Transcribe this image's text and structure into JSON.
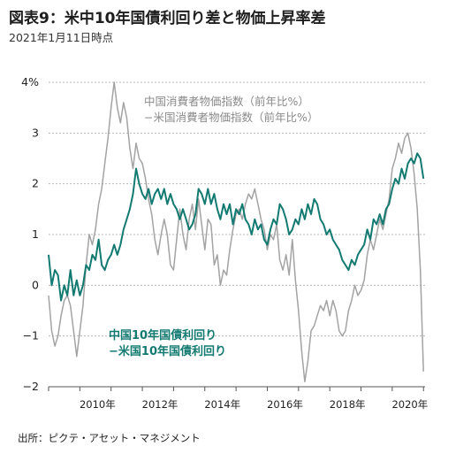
{
  "header": {
    "title": "図表9：米中10年国債利回り差と物価上昇率差",
    "subtitle": "2021年1月11日時点"
  },
  "footer": {
    "source": "出所：ピクテ・アセット・マネジメント"
  },
  "colors": {
    "cpi_series": "#a3a3a3",
    "yield_series": "#137a72",
    "grid": "#b8b8b8",
    "axis": "#555555"
  },
  "chart_data": {
    "type": "line",
    "x_unit": "year",
    "xlim": [
      2009.0,
      2021.05
    ],
    "ylim": [
      -2,
      4
    ],
    "yticks": [
      {
        "value": 4,
        "label": "4%"
      },
      {
        "value": 3,
        "label": "3"
      },
      {
        "value": 2,
        "label": "2"
      },
      {
        "value": 1,
        "label": "1"
      },
      {
        "value": 0,
        "label": "0"
      },
      {
        "value": -1,
        "label": "−1"
      },
      {
        "value": -2,
        "label": "−2"
      }
    ],
    "xticks": [
      {
        "value": 2010,
        "label": "2010年"
      },
      {
        "value": 2012,
        "label": "2012年"
      },
      {
        "value": 2014,
        "label": "2014年"
      },
      {
        "value": 2016,
        "label": "2016年"
      },
      {
        "value": 2018,
        "label": "2018年"
      },
      {
        "value": 2020,
        "label": "2020年"
      }
    ],
    "grid": "horizontal dashed",
    "series": [
      {
        "name_lines": [
          "中国消費者物価指数（前年比%）",
          "−米国消費者物価指数（前年比%）"
        ],
        "color": "#a3a3a3",
        "points": [
          [
            2009.0,
            -0.2
          ],
          [
            2009.1,
            -0.9
          ],
          [
            2009.2,
            -1.2
          ],
          [
            2009.3,
            -1.0
          ],
          [
            2009.4,
            -0.6
          ],
          [
            2009.5,
            -0.3
          ],
          [
            2009.6,
            -0.2
          ],
          [
            2009.7,
            -0.4
          ],
          [
            2009.8,
            -0.9
          ],
          [
            2009.9,
            -1.4
          ],
          [
            2010.0,
            -0.9
          ],
          [
            2010.1,
            -0.4
          ],
          [
            2010.2,
            0.4
          ],
          [
            2010.3,
            1.0
          ],
          [
            2010.4,
            0.8
          ],
          [
            2010.5,
            1.1
          ],
          [
            2010.6,
            1.6
          ],
          [
            2010.7,
            1.9
          ],
          [
            2010.8,
            2.4
          ],
          [
            2010.9,
            2.9
          ],
          [
            2011.0,
            3.5
          ],
          [
            2011.1,
            4.0
          ],
          [
            2011.2,
            3.5
          ],
          [
            2011.3,
            3.2
          ],
          [
            2011.4,
            3.6
          ],
          [
            2011.5,
            3.3
          ],
          [
            2011.6,
            2.7
          ],
          [
            2011.7,
            2.3
          ],
          [
            2011.8,
            2.8
          ],
          [
            2011.9,
            2.5
          ],
          [
            2012.0,
            2.4
          ],
          [
            2012.1,
            2.1
          ],
          [
            2012.2,
            1.7
          ],
          [
            2012.3,
            1.4
          ],
          [
            2012.4,
            0.9
          ],
          [
            2012.5,
            0.6
          ],
          [
            2012.6,
            1.0
          ],
          [
            2012.7,
            1.3
          ],
          [
            2012.8,
            1.0
          ],
          [
            2012.9,
            0.4
          ],
          [
            2013.0,
            0.3
          ],
          [
            2013.1,
            0.9
          ],
          [
            2013.2,
            1.5
          ],
          [
            2013.3,
            1.0
          ],
          [
            2013.4,
            0.7
          ],
          [
            2013.5,
            1.3
          ],
          [
            2013.6,
            1.6
          ],
          [
            2013.7,
            1.1
          ],
          [
            2013.8,
            1.7
          ],
          [
            2013.9,
            1.2
          ],
          [
            2014.0,
            0.7
          ],
          [
            2014.1,
            1.3
          ],
          [
            2014.2,
            1.2
          ],
          [
            2014.3,
            0.4
          ],
          [
            2014.4,
            0.6
          ],
          [
            2014.5,
            0.0
          ],
          [
            2014.6,
            0.3
          ],
          [
            2014.7,
            0.2
          ],
          [
            2014.8,
            0.7
          ],
          [
            2014.9,
            1.1
          ],
          [
            2015.0,
            1.4
          ],
          [
            2015.1,
            1.5
          ],
          [
            2015.2,
            1.3
          ],
          [
            2015.3,
            1.6
          ],
          [
            2015.4,
            1.8
          ],
          [
            2015.5,
            1.7
          ],
          [
            2015.6,
            1.9
          ],
          [
            2015.7,
            1.6
          ],
          [
            2015.8,
            1.3
          ],
          [
            2015.9,
            1.1
          ],
          [
            2016.0,
            0.7
          ],
          [
            2016.1,
            1.0
          ],
          [
            2016.2,
            0.9
          ],
          [
            2016.3,
            1.2
          ],
          [
            2016.4,
            0.5
          ],
          [
            2016.5,
            0.3
          ],
          [
            2016.6,
            0.6
          ],
          [
            2016.7,
            0.2
          ],
          [
            2016.8,
            0.9
          ],
          [
            2016.9,
            0.1
          ],
          [
            2017.0,
            -0.5
          ],
          [
            2017.1,
            -1.3
          ],
          [
            2017.2,
            -1.9
          ],
          [
            2017.3,
            -1.5
          ],
          [
            2017.4,
            -0.9
          ],
          [
            2017.5,
            -0.8
          ],
          [
            2017.6,
            -0.6
          ],
          [
            2017.7,
            -0.4
          ],
          [
            2017.8,
            -0.5
          ],
          [
            2017.9,
            -0.3
          ],
          [
            2018.0,
            -0.6
          ],
          [
            2018.1,
            -0.3
          ],
          [
            2018.2,
            -0.5
          ],
          [
            2018.3,
            -0.9
          ],
          [
            2018.4,
            -1.0
          ],
          [
            2018.5,
            -0.9
          ],
          [
            2018.6,
            -0.5
          ],
          [
            2018.7,
            -0.3
          ],
          [
            2018.8,
            0.0
          ],
          [
            2018.9,
            -0.2
          ],
          [
            2019.0,
            -0.1
          ],
          [
            2019.1,
            0.1
          ],
          [
            2019.2,
            0.6
          ],
          [
            2019.3,
            0.9
          ],
          [
            2019.4,
            0.7
          ],
          [
            2019.5,
            1.0
          ],
          [
            2019.6,
            1.3
          ],
          [
            2019.7,
            1.1
          ],
          [
            2019.8,
            1.4
          ],
          [
            2019.9,
            1.7
          ],
          [
            2020.0,
            2.3
          ],
          [
            2020.1,
            2.5
          ],
          [
            2020.2,
            2.8
          ],
          [
            2020.3,
            2.6
          ],
          [
            2020.4,
            2.9
          ],
          [
            2020.5,
            3.0
          ],
          [
            2020.6,
            2.7
          ],
          [
            2020.7,
            2.2
          ],
          [
            2020.8,
            1.5
          ],
          [
            2020.9,
            0.3
          ],
          [
            2021.0,
            -1.7
          ]
        ]
      },
      {
        "name_lines": [
          "中国10年国債利回り",
          "−米国10年国債利回り"
        ],
        "color": "#137a72",
        "points": [
          [
            2009.0,
            0.6
          ],
          [
            2009.1,
            0.0
          ],
          [
            2009.2,
            0.3
          ],
          [
            2009.3,
            0.2
          ],
          [
            2009.4,
            -0.3
          ],
          [
            2009.5,
            0.0
          ],
          [
            2009.6,
            -0.2
          ],
          [
            2009.7,
            0.3
          ],
          [
            2009.8,
            -0.2
          ],
          [
            2009.9,
            0.1
          ],
          [
            2010.0,
            -0.2
          ],
          [
            2010.1,
            0.0
          ],
          [
            2010.2,
            0.4
          ],
          [
            2010.3,
            0.3
          ],
          [
            2010.4,
            0.6
          ],
          [
            2010.5,
            0.5
          ],
          [
            2010.6,
            0.9
          ],
          [
            2010.7,
            0.4
          ],
          [
            2010.8,
            0.3
          ],
          [
            2010.9,
            0.5
          ],
          [
            2011.0,
            0.6
          ],
          [
            2011.1,
            0.8
          ],
          [
            2011.2,
            0.6
          ],
          [
            2011.3,
            0.8
          ],
          [
            2011.4,
            1.1
          ],
          [
            2011.5,
            1.3
          ],
          [
            2011.6,
            1.5
          ],
          [
            2011.7,
            1.8
          ],
          [
            2011.8,
            2.3
          ],
          [
            2011.9,
            2.0
          ],
          [
            2012.0,
            1.8
          ],
          [
            2012.1,
            1.7
          ],
          [
            2012.2,
            1.9
          ],
          [
            2012.3,
            1.6
          ],
          [
            2012.4,
            1.8
          ],
          [
            2012.5,
            1.9
          ],
          [
            2012.6,
            1.7
          ],
          [
            2012.7,
            1.9
          ],
          [
            2012.8,
            1.6
          ],
          [
            2012.9,
            1.8
          ],
          [
            2013.0,
            1.6
          ],
          [
            2013.1,
            1.5
          ],
          [
            2013.2,
            1.3
          ],
          [
            2013.3,
            1.5
          ],
          [
            2013.4,
            1.3
          ],
          [
            2013.5,
            1.1
          ],
          [
            2013.6,
            1.2
          ],
          [
            2013.7,
            1.4
          ],
          [
            2013.8,
            1.9
          ],
          [
            2013.9,
            1.8
          ],
          [
            2014.0,
            1.6
          ],
          [
            2014.1,
            1.9
          ],
          [
            2014.2,
            1.6
          ],
          [
            2014.3,
            1.8
          ],
          [
            2014.4,
            1.5
          ],
          [
            2014.5,
            1.3
          ],
          [
            2014.6,
            1.6
          ],
          [
            2014.7,
            1.4
          ],
          [
            2014.8,
            1.6
          ],
          [
            2014.9,
            1.2
          ],
          [
            2015.0,
            1.5
          ],
          [
            2015.1,
            1.4
          ],
          [
            2015.2,
            1.6
          ],
          [
            2015.3,
            1.3
          ],
          [
            2015.4,
            1.2
          ],
          [
            2015.5,
            1.0
          ],
          [
            2015.6,
            1.3
          ],
          [
            2015.7,
            1.1
          ],
          [
            2015.8,
            1.2
          ],
          [
            2015.9,
            0.9
          ],
          [
            2016.0,
            0.8
          ],
          [
            2016.1,
            1.1
          ],
          [
            2016.2,
            1.3
          ],
          [
            2016.3,
            1.2
          ],
          [
            2016.4,
            1.6
          ],
          [
            2016.5,
            1.5
          ],
          [
            2016.6,
            1.3
          ],
          [
            2016.7,
            1.0
          ],
          [
            2016.8,
            1.1
          ],
          [
            2016.9,
            1.3
          ],
          [
            2017.0,
            1.2
          ],
          [
            2017.1,
            1.5
          ],
          [
            2017.2,
            1.3
          ],
          [
            2017.3,
            1.6
          ],
          [
            2017.4,
            1.4
          ],
          [
            2017.5,
            1.7
          ],
          [
            2017.6,
            1.6
          ],
          [
            2017.7,
            1.3
          ],
          [
            2017.8,
            1.2
          ],
          [
            2017.9,
            1.0
          ],
          [
            2018.0,
            1.1
          ],
          [
            2018.1,
            0.9
          ],
          [
            2018.2,
            0.8
          ],
          [
            2018.3,
            0.7
          ],
          [
            2018.4,
            0.5
          ],
          [
            2018.5,
            0.4
          ],
          [
            2018.6,
            0.3
          ],
          [
            2018.7,
            0.5
          ],
          [
            2018.8,
            0.4
          ],
          [
            2018.9,
            0.6
          ],
          [
            2019.0,
            0.7
          ],
          [
            2019.1,
            0.8
          ],
          [
            2019.2,
            1.1
          ],
          [
            2019.3,
            0.9
          ],
          [
            2019.4,
            1.3
          ],
          [
            2019.5,
            1.2
          ],
          [
            2019.6,
            1.4
          ],
          [
            2019.7,
            1.2
          ],
          [
            2019.8,
            1.5
          ],
          [
            2019.9,
            1.6
          ],
          [
            2020.0,
            1.9
          ],
          [
            2020.1,
            2.1
          ],
          [
            2020.2,
            2.0
          ],
          [
            2020.3,
            2.3
          ],
          [
            2020.4,
            2.1
          ],
          [
            2020.5,
            2.4
          ],
          [
            2020.6,
            2.5
          ],
          [
            2020.7,
            2.4
          ],
          [
            2020.8,
            2.6
          ],
          [
            2020.9,
            2.5
          ],
          [
            2021.0,
            2.1
          ]
        ]
      }
    ]
  }
}
